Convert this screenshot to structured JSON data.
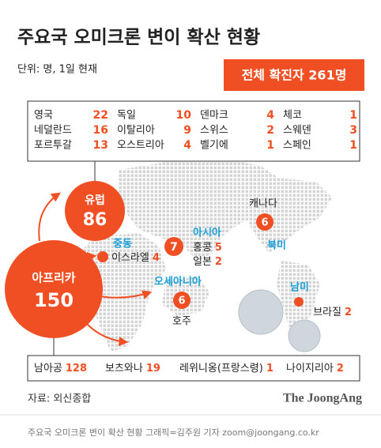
{
  "header": {
    "title": "주요국 오미크론 변이 확산 현황",
    "unit": "단위: 명, 1일 현재",
    "total": "전체 확진자 261명"
  },
  "europe_table": [
    [
      {
        "name": "영국",
        "value": 22
      },
      {
        "name": "독일",
        "value": 10
      },
      {
        "name": "덴마크",
        "value": 4
      },
      {
        "name": "체코",
        "value": 1
      }
    ],
    [
      {
        "name": "네덜란드",
        "value": 16
      },
      {
        "name": "이탈리아",
        "value": 9
      },
      {
        "name": "스위스",
        "value": 2
      },
      {
        "name": "스웨덴",
        "value": 3
      }
    ],
    [
      {
        "name": "포르투갈",
        "value": 13
      },
      {
        "name": "오스트리아",
        "value": 4
      },
      {
        "name": "벨기에",
        "value": 1
      },
      {
        "name": "스페인",
        "value": 1
      }
    ]
  ],
  "regions": {
    "europe": {
      "label": "유럽",
      "value": 86
    },
    "africa": {
      "label": "아프리카",
      "value": 150
    },
    "middle_east": {
      "label": "중동",
      "items": [
        {
          "name": "이스라엘",
          "value": 4
        }
      ]
    },
    "asia": {
      "label": "아시아",
      "value": 7,
      "items": [
        {
          "name": "홍콩",
          "value": 5
        },
        {
          "name": "일본",
          "value": 2
        }
      ]
    },
    "north_america": {
      "label": "북미",
      "value": 6,
      "items": [
        {
          "name": "캐나다"
        }
      ]
    },
    "oceania": {
      "label": "오세아니아",
      "value": 6,
      "items": [
        {
          "name": "호주"
        }
      ]
    },
    "south_america": {
      "label": "남미",
      "items": [
        {
          "name": "브라질",
          "value": 2
        }
      ]
    }
  },
  "africa_list": [
    {
      "name": "남아공",
      "value": 128
    },
    {
      "name": "보츠와나",
      "value": 19
    },
    {
      "name": "레위니옹(프랑스령)",
      "value": 1
    },
    {
      "name": "나이지리아",
      "value": 2
    }
  ],
  "footer": {
    "source": "자료: 외신종합",
    "brand": "The JoongAng",
    "credit": "주요국 오미크론 변이 확산 현황 그래픽=김주원 기자 zoom@joongang.co.kr"
  }
}
